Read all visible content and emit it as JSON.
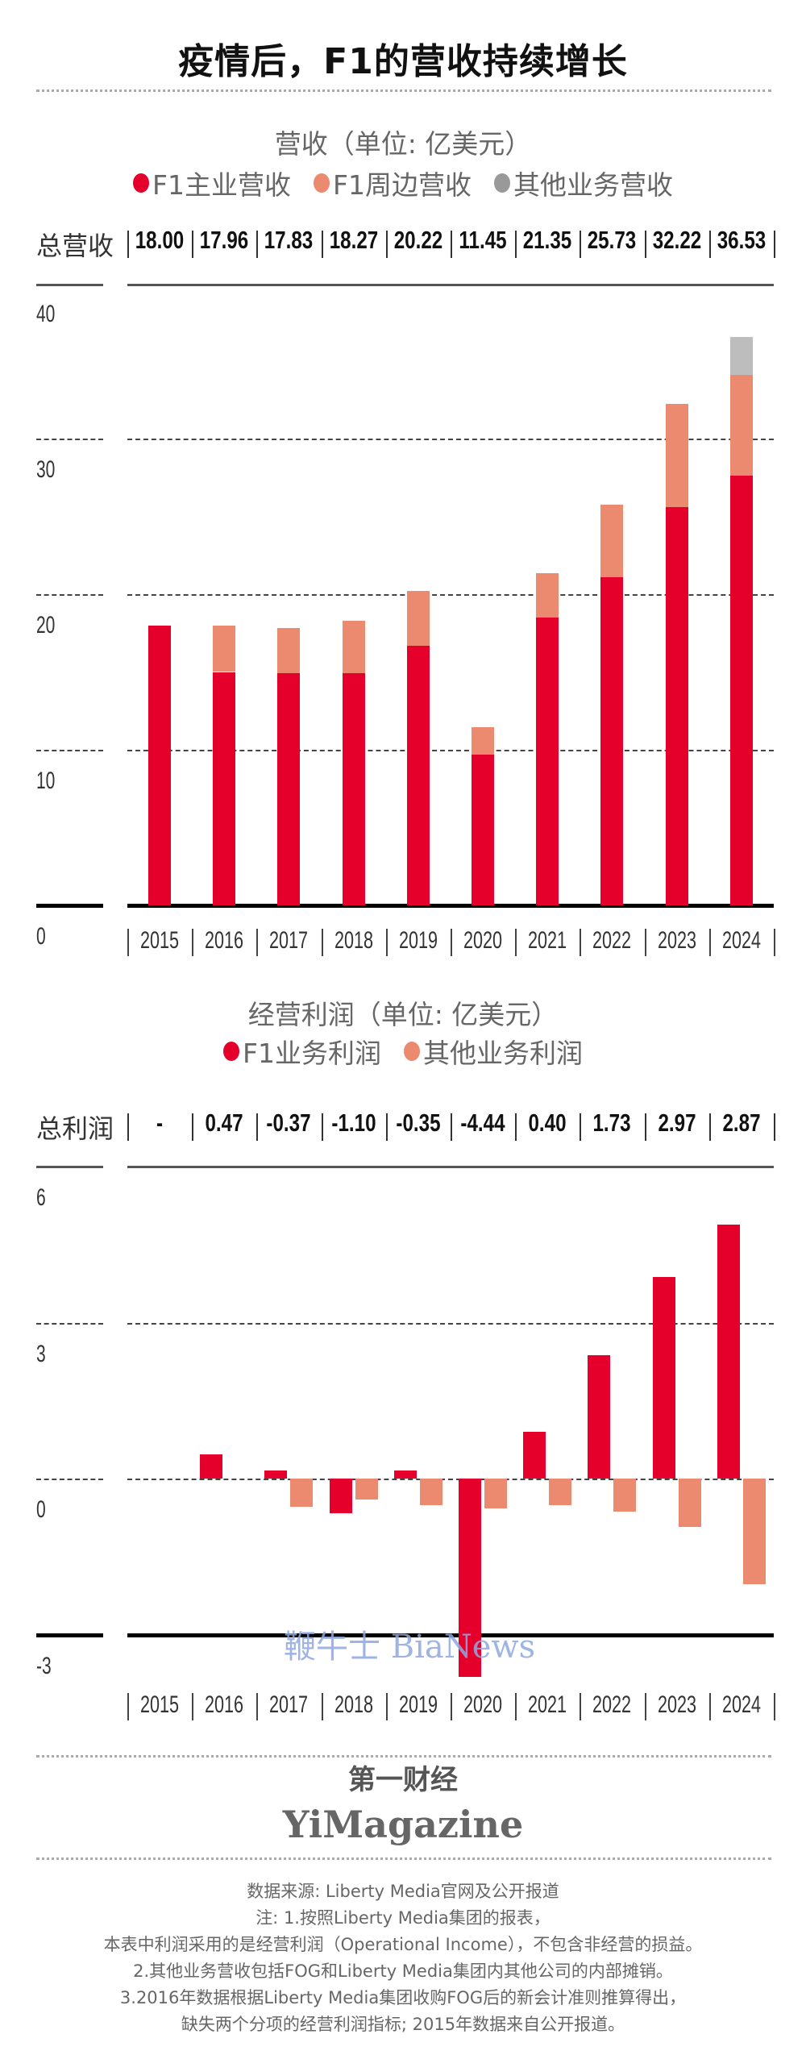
{
  "title": "疫情后，F1的营收持续增长",
  "colors": {
    "red": "#e4002b",
    "salmon": "#ec8a70",
    "gray": "#bdbdbd"
  },
  "chart_data": [
    {
      "type": "bar",
      "stacked": true,
      "title": "营收（单位: 亿美元）",
      "totals_label": "总营收",
      "categories": [
        "2015",
        "2016",
        "2017",
        "2018",
        "2019",
        "2020",
        "2021",
        "2022",
        "2023",
        "2024"
      ],
      "totals": [
        "18.00",
        "17.96",
        "17.83",
        "18.27",
        "20.22",
        "11.45",
        "21.35",
        "25.73",
        "32.22",
        "36.53"
      ],
      "series": [
        {
          "name": "F1主业营收",
          "color": "#e4002b",
          "values": [
            18.0,
            15.0,
            14.9,
            14.9,
            16.7,
            9.7,
            18.5,
            21.1,
            25.6,
            27.6
          ]
        },
        {
          "name": "F1周边营收",
          "color": "#ec8a70",
          "values": [
            0,
            2.96,
            2.93,
            3.37,
            3.52,
            1.75,
            2.85,
            4.63,
            6.62,
            6.5
          ]
        },
        {
          "name": "其他业务营收",
          "color": "#bdbdbd",
          "values": [
            0,
            0,
            0,
            0,
            0,
            0,
            0,
            0,
            0,
            2.43
          ]
        }
      ],
      "yticks": [
        "0",
        "10",
        "20",
        "30",
        "40"
      ],
      "ylim": [
        0,
        40
      ],
      "grid": true,
      "legend": "top-center"
    },
    {
      "type": "bar",
      "stacked": false,
      "title": "经营利润（单位: 亿美元）",
      "totals_label": "总利润",
      "categories": [
        "2015",
        "2016",
        "2017",
        "2018",
        "2019",
        "2020",
        "2021",
        "2022",
        "2023",
        "2024"
      ],
      "totals": [
        "-",
        "0.47",
        "-0.37",
        "-1.10",
        "-0.35",
        "-4.44",
        "0.40",
        "1.73",
        "2.97",
        "2.87"
      ],
      "series": [
        {
          "name": "F1业务利润",
          "color": "#e4002b",
          "values": [
            null,
            0.47,
            0.16,
            -0.66,
            0.16,
            -3.81,
            0.9,
            2.37,
            3.88,
            4.88
          ]
        },
        {
          "name": "其他业务利润",
          "color": "#ec8a70",
          "values": [
            null,
            null,
            -0.55,
            -0.41,
            -0.51,
            -0.57,
            -0.51,
            -0.64,
            -0.93,
            -2.03
          ]
        }
      ],
      "yticks": [
        "-3",
        "0",
        "3",
        "6"
      ],
      "ylim": [
        -3,
        6
      ],
      "grid": true,
      "legend": "top-center"
    }
  ],
  "watermark": "鞭牛士 BiaNews",
  "brand": {
    "cn": "第一财经",
    "en": "YiMagazine"
  },
  "notes": [
    "数据来源: Liberty Media官网及公开报道",
    "注: 1.按照Liberty Media集团的报表，",
    "本表中利润采用的是经营利润（Operational Income），不包含非经营的损益。",
    "2.其他业务营收包括FOG和Liberty Media集团内其他公司的内部摊销。",
    "3.2016年数据根据Liberty Media集团收购FOG后的新会计准则推算得出，",
    "缺失两个分项的经营利润指标; 2015年数据来自公开报道。"
  ]
}
